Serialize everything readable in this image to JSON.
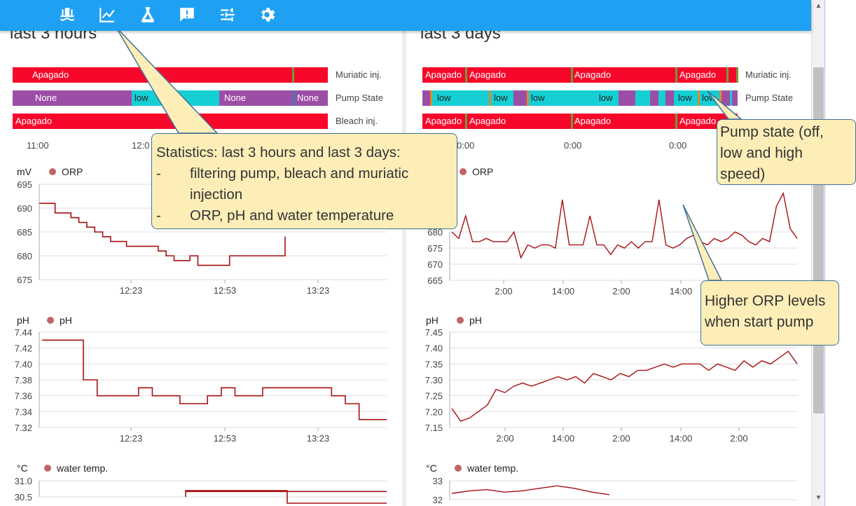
{
  "nav": {
    "icons": [
      "pool-icon",
      "chart-icon",
      "flask-icon",
      "feedback-icon",
      "tune-icon",
      "settings-icon"
    ],
    "color": "#ffffff",
    "bar_color": "#1ea1f2"
  },
  "panels": {
    "left_title": "last 3 hours",
    "right_title": "last 3 days"
  },
  "state_rows": {
    "labels": [
      "Muriatic inj.",
      "Pump State",
      "Bleach inj."
    ]
  },
  "left_timeline": {
    "muriatic": [
      "Apagado"
    ],
    "pump": [
      "None",
      "low",
      "None",
      "None"
    ],
    "bleach": [
      "Apagado"
    ],
    "ticks": [
      "11:00",
      "12:0"
    ]
  },
  "right_timeline": {
    "muriatic": [
      "Apagado",
      "Apagado",
      "Apagado",
      "Apagado"
    ],
    "pump": [
      "low",
      "low",
      "low",
      "low",
      "low",
      "low"
    ],
    "bleach": [
      "Apagado",
      "Apagado",
      "Apagado",
      "Apagado"
    ],
    "ticks": [
      "0:00",
      "0:00",
      "0:00"
    ]
  },
  "colors": {
    "apagado": "#f7082a",
    "none": "#9c4ea7",
    "low": "#14cfd4",
    "line": "#a80f12",
    "legend_dot": "#c06667",
    "grid": "#dddddd"
  },
  "charts": {
    "orp_unit": "mV",
    "orp_legend": "ORP",
    "ph_unit": "pH",
    "ph_legend": "pH",
    "temp_unit": "°C",
    "temp_legend": "water temp.",
    "left_orp_yticks": [
      "695",
      "690",
      "685",
      "680",
      "675"
    ],
    "left_ph_yticks": [
      "7.44",
      "7.42",
      "7.40",
      "7.38",
      "7.36",
      "7.34",
      "7.32"
    ],
    "left_temp_yticks": [
      "31.0",
      "30.5"
    ],
    "left_xticks": [
      "12:23",
      "12:53",
      "13:23"
    ],
    "right_orp_yticks": [
      "680",
      "675",
      "670",
      "665"
    ],
    "right_ph_yticks": [
      "7.45",
      "7.40",
      "7.35",
      "7.30",
      "7.25",
      "7.20",
      "7.15"
    ],
    "right_temp_yticks": [
      "33",
      "32"
    ],
    "right_xticks": [
      "2:00",
      "14:00",
      "2:00",
      "14:00",
      "2:00"
    ]
  },
  "chart_data": [
    {
      "type": "line",
      "title": "ORP",
      "unit": "mV",
      "range": "last 3 hours",
      "ylim": [
        675,
        695
      ],
      "x_ticks": [
        "12:23",
        "12:53",
        "13:23"
      ],
      "y": [
        691,
        691,
        689,
        689,
        688,
        687,
        686,
        685,
        684,
        683,
        683,
        682,
        682,
        682,
        682,
        681,
        680,
        679,
        679,
        680,
        678,
        678,
        678,
        678,
        680,
        680,
        680,
        680,
        680,
        680,
        680,
        684
      ]
    },
    {
      "type": "line",
      "title": "pH",
      "unit": "pH",
      "range": "last 3 hours",
      "ylim": [
        7.32,
        7.44
      ],
      "x_ticks": [
        "12:23",
        "12:53",
        "13:23"
      ],
      "y": [
        7.43,
        7.43,
        7.43,
        7.38,
        7.36,
        7.36,
        7.36,
        7.37,
        7.36,
        7.36,
        7.35,
        7.35,
        7.36,
        7.37,
        7.36,
        7.36,
        7.37,
        7.37,
        7.37,
        7.37,
        7.37,
        7.36,
        7.35,
        7.33,
        7.33,
        7.33
      ]
    },
    {
      "type": "line",
      "title": "water temp.",
      "unit": "°C",
      "range": "last 3 hours",
      "ylim": [
        30.5,
        31.0
      ],
      "y": [
        30.6,
        30.6,
        30.6,
        30.6
      ]
    },
    {
      "type": "line",
      "title": "ORP",
      "unit": "mV",
      "range": "last 3 days",
      "ylim": [
        665,
        695
      ],
      "x_ticks": [
        "2:00",
        "14:00",
        "2:00",
        "14:00",
        "2:00"
      ],
      "y": [
        680,
        678,
        685,
        677,
        677,
        678,
        677,
        677,
        677,
        680,
        672,
        676,
        675,
        676,
        676,
        675,
        690,
        676,
        676,
        676,
        685,
        676,
        676,
        673,
        676,
        675,
        677,
        675,
        677,
        677,
        690,
        676,
        675,
        676,
        678,
        679,
        677,
        676,
        678,
        677,
        678,
        680,
        679,
        677,
        676,
        678,
        677,
        688,
        692,
        681,
        678
      ]
    },
    {
      "type": "line",
      "title": "pH",
      "unit": "pH",
      "range": "last 3 days",
      "ylim": [
        7.15,
        7.45
      ],
      "x_ticks": [
        "2:00",
        "14:00",
        "2:00",
        "14:00",
        "2:00"
      ],
      "y": [
        7.21,
        7.17,
        7.18,
        7.2,
        7.22,
        7.27,
        7.26,
        7.28,
        7.29,
        7.28,
        7.29,
        7.3,
        7.31,
        7.3,
        7.31,
        7.29,
        7.32,
        7.31,
        7.3,
        7.32,
        7.31,
        7.33,
        7.33,
        7.34,
        7.35,
        7.34,
        7.35,
        7.35,
        7.35,
        7.33,
        7.35,
        7.34,
        7.33,
        7.36,
        7.34,
        7.36,
        7.35,
        7.37,
        7.39,
        7.35
      ]
    },
    {
      "type": "line",
      "title": "water temp.",
      "unit": "°C",
      "range": "last 3 days",
      "ylim": [
        31.5,
        33
      ],
      "y": [
        32,
        32.2,
        32.3,
        32.1,
        32.2,
        32.4,
        32.6,
        32.4,
        32.1,
        31.9
      ]
    }
  ],
  "callouts": {
    "stats": {
      "title": "Statistics: last 3 hours and last 3 days:",
      "items": [
        {
          "dash": "-",
          "text": "filtering pump, bleach and muriatic"
        },
        {
          "dash": "",
          "text": "injection"
        },
        {
          "dash": "-",
          "text": "ORP, pH and water temperature"
        }
      ]
    },
    "pump": [
      "Pump state (off,",
      "low and high",
      "speed)"
    ],
    "orp": [
      "Higher ORP levels",
      "when start pump"
    ]
  }
}
